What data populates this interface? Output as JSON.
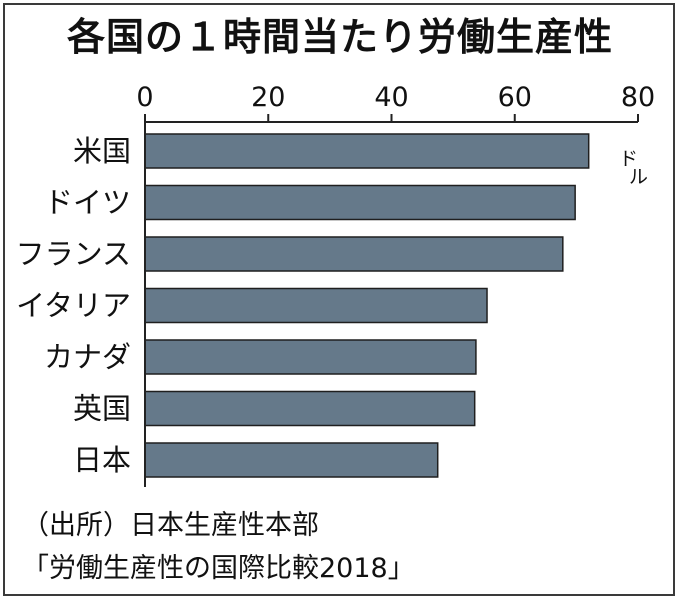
{
  "chart_data": {
    "type": "bar",
    "orientation": "horizontal",
    "title": "各国の１時間当たり労働生産性",
    "unit": "ドル",
    "categories": [
      "米国",
      "ドイツ",
      "フランス",
      "イタリア",
      "カナダ",
      "英国",
      "日本"
    ],
    "values": [
      72.0,
      69.8,
      67.8,
      55.5,
      53.7,
      53.5,
      47.5
    ],
    "xlim": [
      0,
      80
    ],
    "ticks": [
      "0",
      "20",
      "40",
      "60",
      "80"
    ],
    "bar_color": "#65798a",
    "grid": false,
    "source": [
      "（出所）日本生産性本部",
      "「労働生産性の国際比較2018」"
    ]
  }
}
